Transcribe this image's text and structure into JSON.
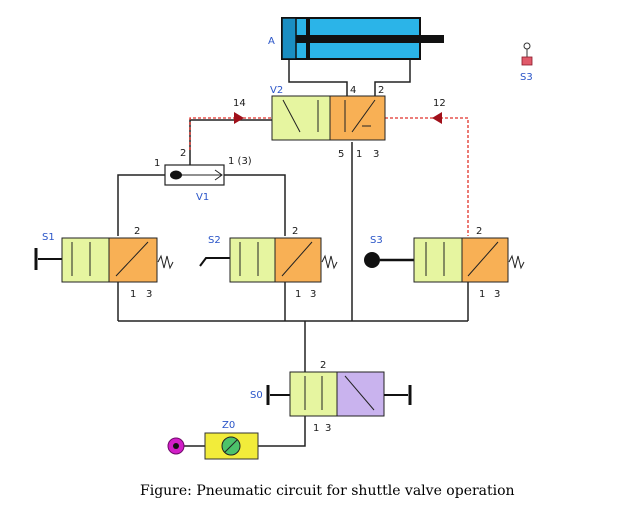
{
  "caption": "Figure: Pneumatic circuit for shuttle valve operation",
  "colors": {
    "cylinder": "#2bb4e8",
    "valve_left": "#e6f5a0",
    "valve_right": "#f8b055",
    "valve_violet": "#c9b3ee",
    "pilot_line": "#e0322a",
    "line": "#222222",
    "label_blue": "#2a55c8",
    "source_magenta": "#d21ec8",
    "filter": "#f2ec3a"
  },
  "labels": {
    "cylinder": "A",
    "v2": "V2",
    "v2_port_4": "4",
    "v2_port_2": "2",
    "v2_port_5": "5",
    "v2_port_1": "1",
    "v2_port_3": "3",
    "pilot_14": "14",
    "pilot_12": "12",
    "v1": "V1",
    "v1_port_a": "1",
    "v1_port_b": "1 (3)",
    "v1_port_out": "2",
    "s1": "S1",
    "s2": "S2",
    "s3": "S3",
    "s3_top": "S3",
    "s0": "S0",
    "z0": "Z0",
    "port_2": "2",
    "port_1": "1",
    "port_3": "3"
  }
}
